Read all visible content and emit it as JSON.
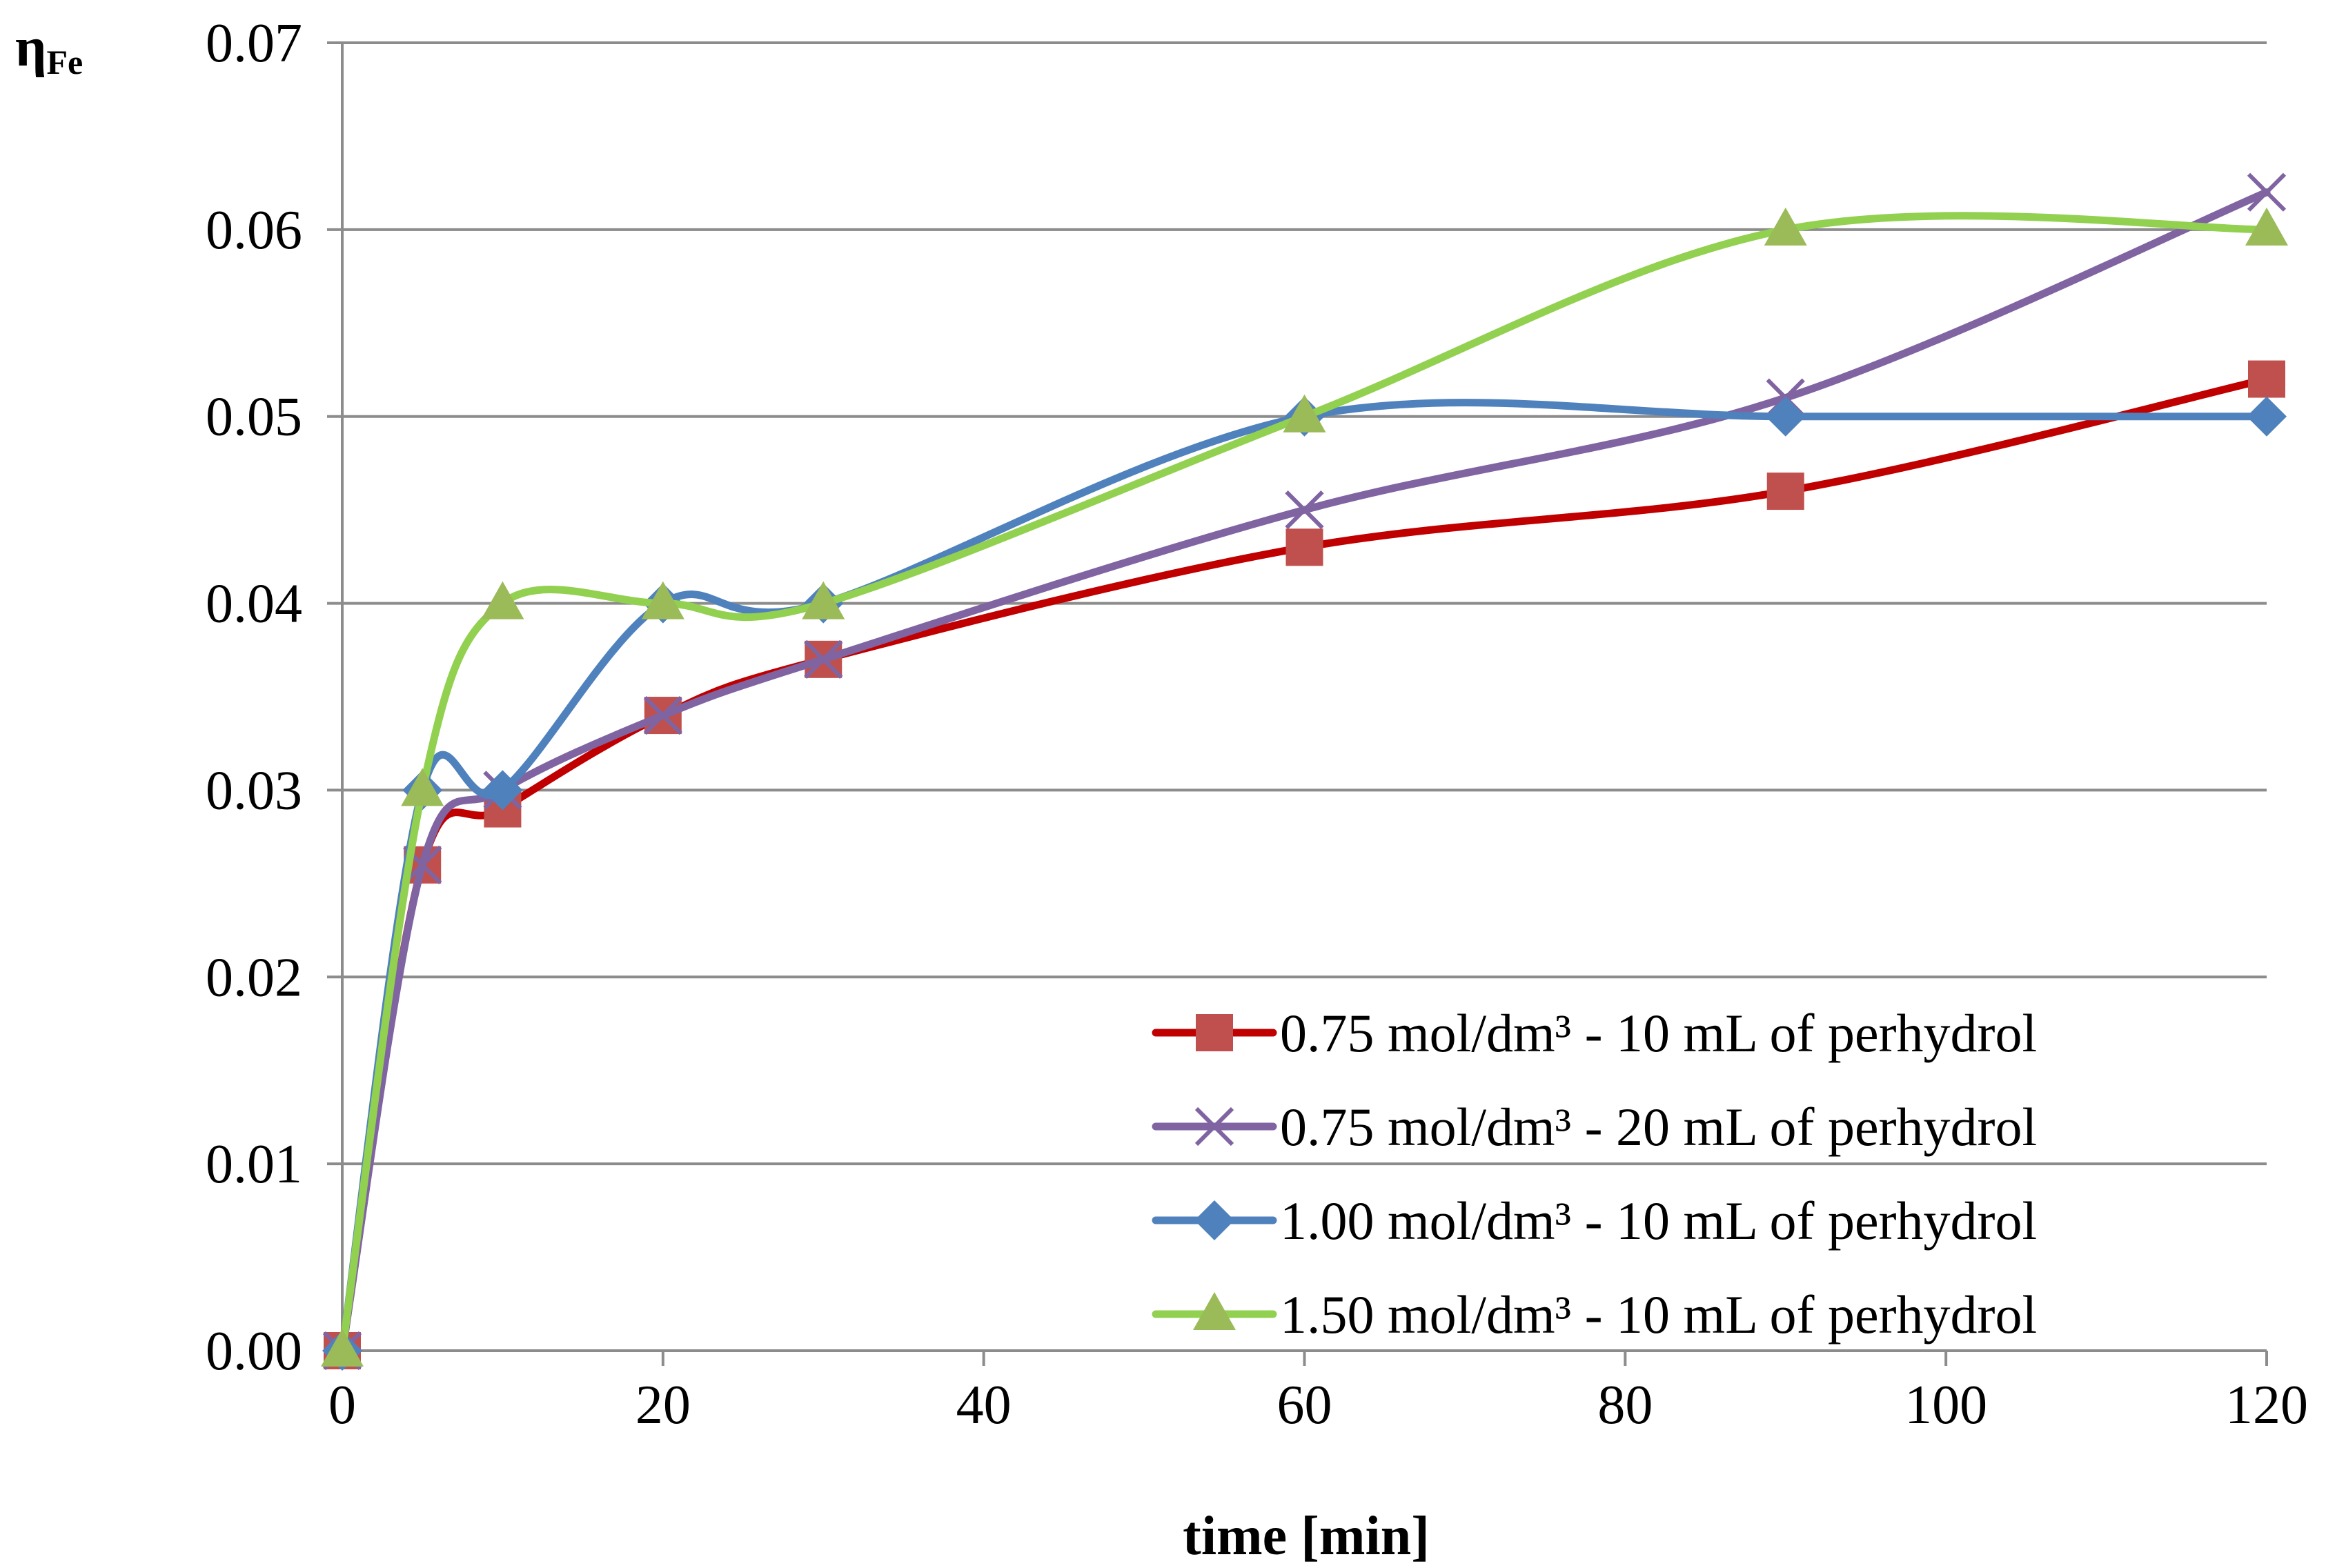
{
  "chart_data": {
    "type": "line",
    "xlabel": "time [min]",
    "ylabel_main": "η",
    "ylabel_sub": "Fe",
    "xlim": [
      0,
      120
    ],
    "ylim": [
      0,
      0.07
    ],
    "x_ticks": [
      "0",
      "20",
      "40",
      "60",
      "80",
      "100",
      "120"
    ],
    "y_ticks": [
      "0.00",
      "0.01",
      "0.02",
      "0.03",
      "0.04",
      "0.05",
      "0.06",
      "0.07"
    ],
    "grid": "horizontal",
    "legend_position": "bottom-right",
    "smooth": true,
    "x": [
      0,
      5,
      10,
      20,
      30,
      60,
      90,
      120
    ],
    "series": [
      {
        "name": "0.75 mol/dm³ - 10 mL of perhydrol",
        "values": [
          0.0,
          0.026,
          0.029,
          0.034,
          0.037,
          0.043,
          0.046,
          0.052
        ],
        "line_color": "#c00000",
        "marker_color": "#c0504d",
        "marker": "square"
      },
      {
        "name": "0.75 mol/dm³ - 20 mL of perhydrol",
        "values": [
          0.0,
          0.026,
          0.03,
          0.034,
          0.037,
          0.045,
          0.051,
          0.062
        ],
        "line_color": "#8064a2",
        "marker_color": "#8064a2",
        "marker": "x"
      },
      {
        "name": "1.00 mol/dm³ - 10 mL of perhydrol",
        "values": [
          0.0,
          0.03,
          0.03,
          0.04,
          0.04,
          0.05,
          0.05,
          0.05
        ],
        "line_color": "#4f81bd",
        "marker_color": "#4f81bd",
        "marker": "diamond"
      },
      {
        "name": "1.50 mol/dm³ - 10 mL of perhydrol",
        "values": [
          0.0,
          0.03,
          0.04,
          0.04,
          0.04,
          0.05,
          0.06,
          0.06
        ],
        "line_color": "#92d050",
        "marker_color": "#9bbb59",
        "marker": "triangle"
      }
    ]
  }
}
